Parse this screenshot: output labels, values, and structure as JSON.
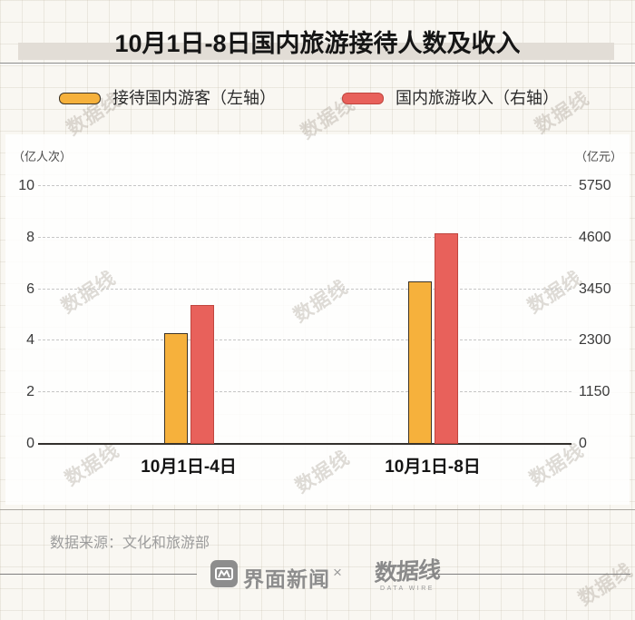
{
  "chart_data": {
    "type": "bar",
    "title": "10月1日-8日国内旅游接待人数及收入",
    "categories": [
      "10月1日-4日",
      "10月1日-8日"
    ],
    "series": [
      {
        "name": "接待国内游客（左轴）",
        "axis": "left",
        "unit": "亿人次",
        "values": [
          4.3,
          6.3
        ],
        "color": "#F6B13C",
        "border_color": "#3d3427"
      },
      {
        "name": "国内旅游收入（右轴）",
        "axis": "right",
        "unit": "亿元",
        "values": [
          3100,
          4700
        ],
        "color": "#E8615B",
        "border_color": "#C0463F"
      }
    ],
    "left_axis": {
      "label": "（亿人次）",
      "ticks": [
        10,
        8,
        6,
        4,
        2,
        0
      ],
      "max": 10,
      "min": 0
    },
    "right_axis": {
      "label": "（亿元）",
      "ticks": [
        5750,
        4600,
        3450,
        2300,
        1150,
        0
      ],
      "max": 5750,
      "min": 0
    },
    "grid": "horizontal-dashed",
    "legend_position": "top"
  },
  "footer": {
    "source": "数据来源：文化和旅游部",
    "brand": "界面新闻",
    "separator": "×",
    "datawire": "数据线",
    "datawire_sub": "DATA WIRE"
  },
  "watermark": {
    "text": "数据线"
  }
}
